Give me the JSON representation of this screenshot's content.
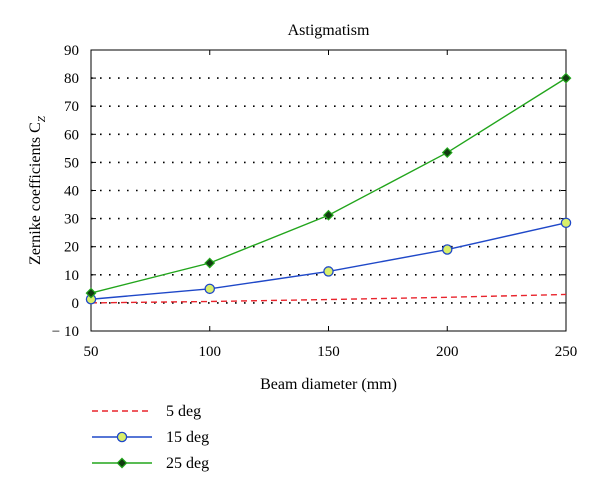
{
  "chart_data": {
    "type": "line",
    "title": "Astigmatism",
    "xlabel": "Beam diameter (mm)",
    "ylabel": "Zernike coefficients C",
    "ylabel_subscript": "Z",
    "x": [
      50,
      100,
      150,
      200,
      250
    ],
    "xlim": [
      50,
      250
    ],
    "ylim": [
      -10,
      90
    ],
    "xticks": [
      50,
      100,
      150,
      200,
      250
    ],
    "yticks": [
      -10,
      0,
      10,
      20,
      30,
      40,
      50,
      60,
      70,
      80,
      90
    ],
    "grid": "dotted horizontal",
    "legend_position": "below",
    "series": [
      {
        "name": "5 deg",
        "values": [
          0,
          0.5,
          1.2,
          2.0,
          3.0
        ],
        "color": "#e8242c",
        "style": "dashed",
        "marker": "none"
      },
      {
        "name": "15 deg",
        "values": [
          1.3,
          5.0,
          11.2,
          19.0,
          28.5
        ],
        "color": "#1f48c8",
        "style": "solid",
        "marker": "circle",
        "marker_fill": "#d9ef6a"
      },
      {
        "name": "25 deg",
        "values": [
          3.5,
          14.2,
          31.2,
          53.5,
          80.0
        ],
        "color": "#22a51c",
        "style": "solid",
        "marker": "diamond",
        "marker_fill": "#123b12"
      }
    ]
  }
}
